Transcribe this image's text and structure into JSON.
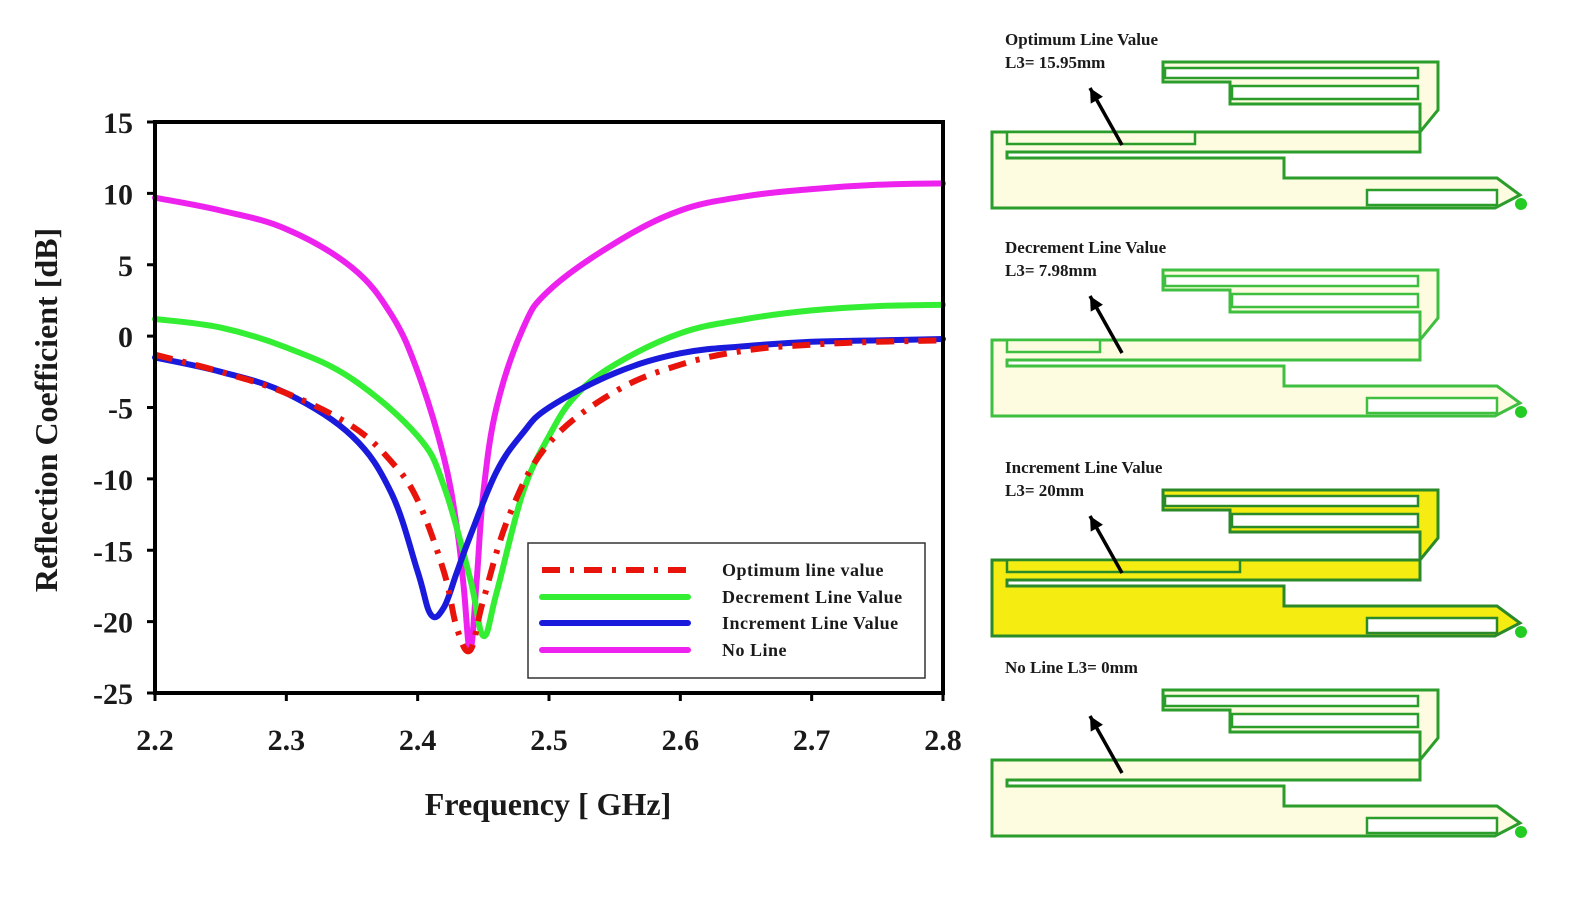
{
  "chart_data": {
    "type": "line",
    "xlabel": "Frequency [ GHz]",
    "ylabel": "Reflection Coefficient [dB]",
    "xlim": [
      2.2,
      2.8
    ],
    "ylim": [
      -25,
      15
    ],
    "xticks": [
      "2.2",
      "2.3",
      "2.4",
      "2.5",
      "2.6",
      "2.7",
      "2.8"
    ],
    "yticks": [
      "15",
      "10",
      "5",
      "0",
      "-5",
      "-10",
      "-15",
      "-20",
      "-25"
    ],
    "grid": false,
    "legend_position": "bottom-right",
    "series": [
      {
        "name": "Optimum line value",
        "color": "#e8140c",
        "style": "dash-dot",
        "x": [
          2.2,
          2.25,
          2.3,
          2.35,
          2.38,
          2.4,
          2.42,
          2.43,
          2.44,
          2.45,
          2.47,
          2.5,
          2.55,
          2.6,
          2.65,
          2.7,
          2.75,
          2.8
        ],
        "y": [
          -1.3,
          -2.5,
          -4.0,
          -6.3,
          -8.8,
          -11.5,
          -16.5,
          -20.5,
          -22.0,
          -18.5,
          -12.5,
          -7.5,
          -3.9,
          -2.0,
          -1.0,
          -0.6,
          -0.4,
          -0.3
        ]
      },
      {
        "name": "Decrement Line Value",
        "color": "#33ee33",
        "style": "solid",
        "x": [
          2.2,
          2.25,
          2.3,
          2.35,
          2.4,
          2.42,
          2.44,
          2.45,
          2.46,
          2.48,
          2.5,
          2.52,
          2.55,
          2.6,
          2.65,
          2.7,
          2.75,
          2.8
        ],
        "y": [
          1.2,
          0.6,
          -0.8,
          -3.0,
          -7.0,
          -10.5,
          -17.0,
          -21.0,
          -18.0,
          -11.0,
          -7.0,
          -4.2,
          -2.0,
          0.2,
          1.2,
          1.8,
          2.1,
          2.2
        ]
      },
      {
        "name": "Increment Line Value",
        "color": "#1a1adc",
        "style": "solid",
        "x": [
          2.2,
          2.25,
          2.3,
          2.35,
          2.38,
          2.4,
          2.41,
          2.42,
          2.43,
          2.44,
          2.46,
          2.48,
          2.5,
          2.55,
          2.6,
          2.65,
          2.7,
          2.75,
          2.8
        ],
        "y": [
          -1.5,
          -2.5,
          -4.0,
          -7.0,
          -11.0,
          -16.5,
          -19.5,
          -19.0,
          -16.5,
          -14.0,
          -9.5,
          -6.8,
          -5.0,
          -2.6,
          -1.2,
          -0.7,
          -0.4,
          -0.3,
          -0.2
        ]
      },
      {
        "name": "No Line",
        "color": "#ee22ee",
        "style": "solid",
        "x": [
          2.2,
          2.25,
          2.3,
          2.35,
          2.38,
          2.4,
          2.42,
          2.43,
          2.435,
          2.44,
          2.445,
          2.45,
          2.46,
          2.48,
          2.5,
          2.55,
          2.6,
          2.65,
          2.7,
          2.75,
          2.8
        ],
        "y": [
          9.7,
          8.8,
          7.5,
          4.8,
          1.5,
          -2.5,
          -8.5,
          -13.5,
          -17.5,
          -22.0,
          -17.0,
          -11.0,
          -5.0,
          0.5,
          3.2,
          6.5,
          8.8,
          9.8,
          10.3,
          10.6,
          10.7
        ]
      }
    ]
  },
  "panels": [
    {
      "title": "Optimum Line Value",
      "value": "L3= 15.95mm",
      "variant": "optimum"
    },
    {
      "title": "Decrement Line Value",
      "value": "L3= 7.98mm",
      "variant": "decrement"
    },
    {
      "title": "Increment Line Value",
      "value": "L3= 20mm",
      "variant": "increment"
    },
    {
      "title": "No Line L3= 0mm",
      "value": "",
      "variant": "noline"
    }
  ]
}
